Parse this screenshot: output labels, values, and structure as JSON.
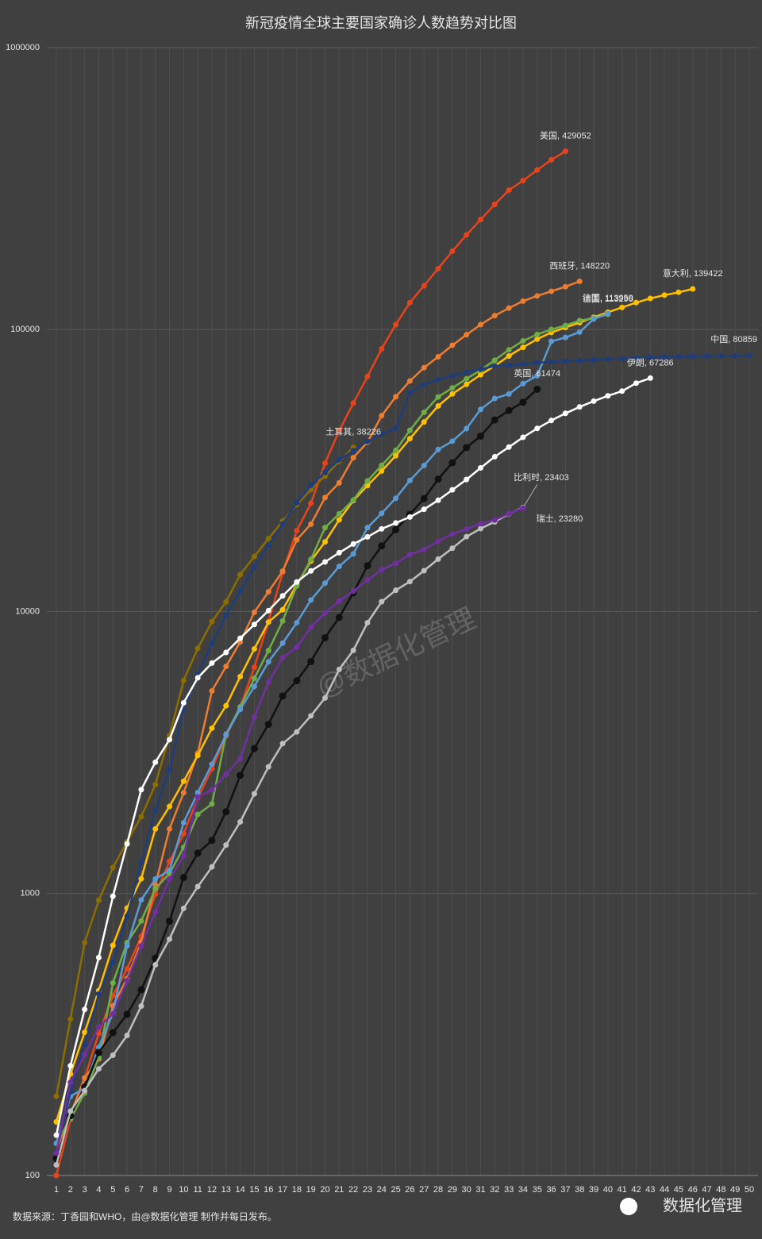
{
  "chart_data": {
    "type": "line",
    "title": "新冠疫情全球主要国家确诊人数趋势对比图",
    "footer": "数据来源：丁香园和WHO，由@数据化管理  制作并每日发布。",
    "watermark": "@数据化管理",
    "brand": "数据化管理",
    "log_scale": true,
    "grid": true,
    "ylim": [
      100,
      1000000
    ],
    "yticks": [
      100,
      1000,
      10000,
      100000,
      1000000
    ],
    "x": [
      1,
      2,
      3,
      4,
      5,
      6,
      7,
      8,
      9,
      10,
      11,
      12,
      13,
      14,
      15,
      16,
      17,
      18,
      19,
      20,
      21,
      22,
      23,
      24,
      25,
      26,
      27,
      28,
      29,
      30,
      31,
      32,
      33,
      34,
      35,
      36,
      37,
      38,
      39,
      40,
      41,
      42,
      43,
      44,
      45,
      46,
      47,
      48,
      49,
      50
    ],
    "series": [
      {
        "name": "美国",
        "end_label": "美国, 429052",
        "color": "#e8441c",
        "values": [
          100,
          158,
          221,
          319,
          435,
          541,
          704,
          994,
          1301,
          1630,
          2183,
          2770,
          3613,
          4596,
          6344,
          9197,
          13779,
          19367,
          24192,
          33592,
          43781,
          54856,
          68211,
          85435,
          104126,
          124686,
          143025,
          164620,
          189618,
          216722,
          245540,
          277953,
          312237,
          337635,
          368196,
          399929,
          429052,
          null,
          null,
          null,
          null,
          null,
          null,
          null,
          null,
          null,
          null,
          null,
          null,
          null
        ]
      },
      {
        "name": "西班牙",
        "end_label": "西班牙, 148220",
        "color": "#ed7d31",
        "values": [
          120,
          165,
          222,
          259,
          400,
          500,
          673,
          1073,
          1695,
          2277,
          3146,
          5232,
          6391,
          7798,
          9942,
          11748,
          13910,
          17963,
          20410,
          25374,
          28603,
          35136,
          39885,
          49515,
          57786,
          65719,
          73235,
          80110,
          87956,
          95923,
          104118,
          112065,
          119199,
          126168,
          131646,
          136675,
          141942,
          148220,
          null,
          null,
          null,
          null,
          null,
          null,
          null,
          null,
          null,
          null,
          null,
          null
        ]
      },
      {
        "name": "意大利",
        "end_label": "意大利, 139422",
        "color": "#ffc000",
        "values": [
          155,
          229,
          322,
          453,
          655,
          888,
          1128,
          1694,
          2036,
          2502,
          3089,
          3858,
          4636,
          5883,
          7375,
          9172,
          10149,
          12462,
          15113,
          17660,
          21157,
          24747,
          27980,
          31506,
          35713,
          41035,
          47021,
          53578,
          59138,
          63927,
          69176,
          74386,
          80589,
          86498,
          92472,
          97689,
          101739,
          105792,
          110574,
          115242,
          119827,
          124632,
          128948,
          132547,
          135586,
          139422,
          null,
          null,
          null,
          null
        ]
      },
      {
        "name": "德国",
        "end_label": "德国, 113296",
        "color": "#70ad47",
        "values": [
          130,
          159,
          196,
          262,
          482,
          670,
          799,
          1040,
          1176,
          1457,
          1908,
          2078,
          3675,
          4585,
          5795,
          7272,
          9257,
          12327,
          15320,
          19848,
          22213,
          24873,
          29056,
          32986,
          37323,
          43938,
          50871,
          57695,
          62095,
          66885,
          71808,
          77872,
          84794,
          91159,
          96092,
          100123,
          103374,
          107663,
          109702,
          113296,
          null,
          null,
          null,
          null,
          null,
          null,
          null,
          null,
          null,
          null
        ]
      },
      {
        "name": "法国",
        "end_label": "法国, 113959",
        "color": "#5b9bd5",
        "values": [
          130,
          191,
          204,
          285,
          377,
          653,
          949,
          1126,
          1209,
          1784,
          2281,
          2876,
          3661,
          4499,
          5423,
          6633,
          7730,
          9134,
          10995,
          12612,
          14459,
          16018,
          19856,
          22304,
          25233,
          29155,
          32964,
          37575,
          40174,
          44550,
          52128,
          56989,
          59105,
          64338,
          68605,
          90848,
          93773,
          98010,
          109069,
          113959,
          null,
          null,
          null,
          null,
          null,
          null,
          null,
          null,
          null,
          null
        ]
      },
      {
        "name": "英国",
        "end_label": "英国, 61474",
        "color": "#111111",
        "values": [
          115,
          163,
          206,
          273,
          321,
          373,
          456,
          590,
          798,
          1140,
          1391,
          1543,
          1950,
          2626,
          3269,
          3983,
          5018,
          5683,
          6650,
          8077,
          9529,
          11658,
          14543,
          17089,
          19522,
          22141,
          25150,
          29474,
          33718,
          38168,
          41903,
          47806,
          51608,
          55242,
          61474,
          null,
          null,
          null,
          null,
          null,
          null,
          null,
          null,
          null,
          null,
          null,
          null,
          null,
          null,
          null
        ]
      },
      {
        "name": "土耳其",
        "end_label": "土耳其, 38226",
        "color": "#8c6d00",
        "values": [
          191,
          359,
          670,
          947,
          1236,
          1529,
          1872,
          2433,
          3629,
          5698,
          7402,
          9217,
          10827,
          13531,
          15679,
          18135,
          20921,
          23934,
          27069,
          30217,
          34109,
          38226,
          null,
          null,
          null,
          null,
          null,
          null,
          null,
          null,
          null,
          null,
          null,
          null,
          null,
          null,
          null,
          null,
          null,
          null,
          null,
          null,
          null,
          null,
          null,
          null,
          null,
          null,
          null,
          null
        ]
      },
      {
        "name": "中国",
        "end_label": "中国, 80859",
        "color": "#1f3d7a",
        "values": [
          121,
          198,
          291,
          440,
          571,
          830,
          1287,
          1975,
          2744,
          4515,
          5974,
          7711,
          9692,
          11791,
          14380,
          17205,
          20438,
          24324,
          28018,
          31161,
          34546,
          37198,
          40171,
          42638,
          44653,
          59804,
          63851,
          66492,
          68500,
          70548,
          72436,
          74185,
          74576,
          75465,
          76288,
          76936,
          77150,
          77658,
          78064,
          78497,
          78824,
          79251,
          79824,
          80026,
          80151,
          80270,
          80409,
          80552,
          80651,
          80859
        ]
      },
      {
        "name": "伊朗",
        "end_label": "伊朗, 67286",
        "color": "#ffffff",
        "values": [
          139,
          245,
          388,
          593,
          978,
          1501,
          2336,
          2922,
          3513,
          4747,
          5823,
          6566,
          7161,
          8042,
          9000,
          10075,
          11364,
          12729,
          13938,
          14991,
          16169,
          17361,
          18407,
          19644,
          20610,
          21638,
          23049,
          24811,
          27017,
          29406,
          32332,
          35408,
          38309,
          41495,
          44605,
          47593,
          50468,
          53183,
          55743,
          58226,
          60500,
          64586,
          67286,
          null,
          null,
          null,
          null,
          null,
          null,
          null
        ]
      },
      {
        "name": "比利时",
        "end_label": "比利时, 23403",
        "color": "#bfbfbf",
        "values": [
          109,
          169,
          200,
          239,
          267,
          314,
          399,
          559,
          689,
          886,
          1058,
          1243,
          1486,
          1795,
          2257,
          2815,
          3401,
          3743,
          4269,
          4937,
          6235,
          7284,
          9134,
          10836,
          11899,
          12775,
          13964,
          15348,
          16770,
          18431,
          19691,
          20814,
          22194,
          23403,
          null,
          null,
          null,
          null,
          null,
          null,
          null,
          null,
          null,
          null,
          null,
          null,
          null,
          null,
          null,
          null
        ]
      },
      {
        "name": "瑞士",
        "end_label": "瑞士, 23280",
        "color": "#7030a0",
        "values": [
          120,
          214,
          268,
          337,
          374,
          491,
          652,
          858,
          1125,
          1359,
          2200,
          2330,
          2650,
          3010,
          4222,
          5615,
          6863,
          7474,
          8795,
          9877,
          10897,
          11811,
          12928,
          14076,
          14829,
          15922,
          16605,
          17768,
          18827,
          19606,
          20505,
          21100,
          22253,
          23280,
          null,
          null,
          null,
          null,
          null,
          null,
          null,
          null,
          null,
          null,
          null,
          null,
          null,
          null,
          null,
          null
        ]
      }
    ]
  }
}
